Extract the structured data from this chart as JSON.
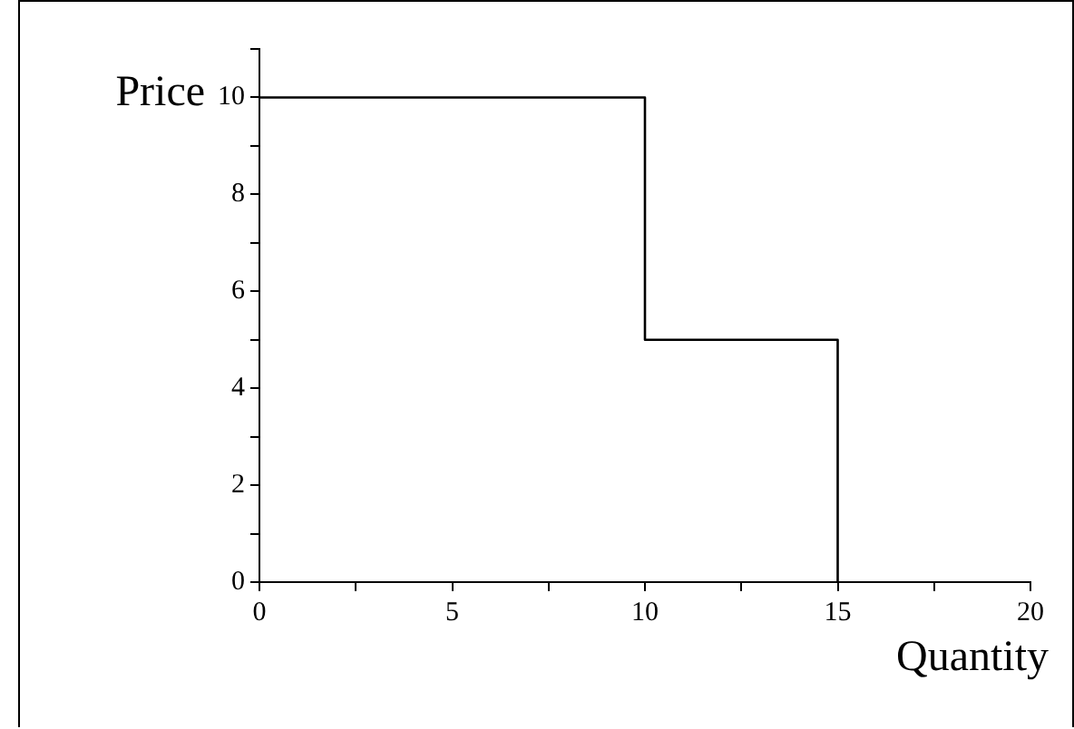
{
  "chart_data": {
    "type": "step",
    "xlabel": "Quantity",
    "ylabel": "Price",
    "x": [
      0,
      10,
      15
    ],
    "series": [
      {
        "color": "#000000",
        "values": [
          10,
          5,
          0
        ]
      }
    ],
    "xlim": [
      0,
      20
    ],
    "xticks": [
      0,
      {
        "value": 2.5,
        "label": null
      },
      5,
      {
        "value": 7.5,
        "label": null
      },
      10,
      {
        "value": 12.5,
        "label": null
      },
      15,
      {
        "value": 17.5,
        "label": null
      },
      20
    ],
    "ylim": [
      0,
      11
    ],
    "yticks": [
      0,
      {
        "value": 1,
        "label": null
      },
      2,
      {
        "value": 3,
        "label": null
      },
      4,
      {
        "value": 5,
        "label": null
      },
      6,
      {
        "value": 7,
        "label": null
      },
      8,
      {
        "value": 9,
        "label": null
      },
      10,
      {
        "value": 11,
        "label": null
      }
    ],
    "grid": false,
    "legend": false,
    "marker": "none",
    "line_style": "solid"
  }
}
